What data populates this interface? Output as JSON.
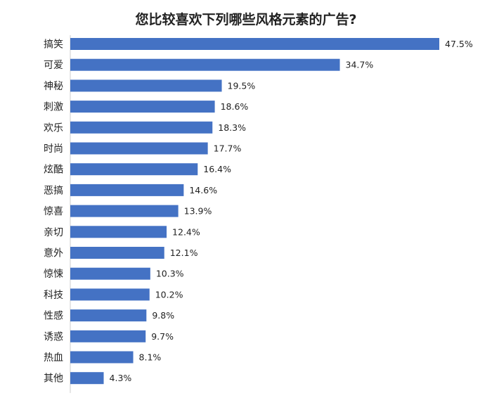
{
  "chart_data": {
    "type": "bar",
    "orientation": "horizontal",
    "title": "您比较喜欢下列哪些风格元素的广告?",
    "categories": [
      "搞笑",
      "可爱",
      "神秘",
      "刺激",
      "欢乐",
      "时尚",
      "炫酷",
      "恶搞",
      "惊喜",
      "亲切",
      "意外",
      "惊悚",
      "科技",
      "性感",
      "诱惑",
      "热血",
      "其他"
    ],
    "values": [
      47.5,
      34.7,
      19.5,
      18.6,
      18.3,
      17.7,
      16.4,
      14.6,
      13.9,
      12.4,
      12.1,
      10.3,
      10.2,
      9.8,
      9.7,
      8.1,
      4.3
    ],
    "value_labels": [
      "47.5%",
      "34.7%",
      "19.5%",
      "18.6%",
      "18.3%",
      "17.7%",
      "16.4%",
      "14.6%",
      "13.9%",
      "12.4%",
      "12.1%",
      "10.3%",
      "10.2%",
      "9.8%",
      "9.7%",
      "8.1%",
      "4.3%"
    ],
    "xlim": [
      0,
      47.5
    ],
    "grid": false,
    "legend": "none",
    "bar_color": "#4472c4",
    "axis_line_color": "#cccccc"
  }
}
